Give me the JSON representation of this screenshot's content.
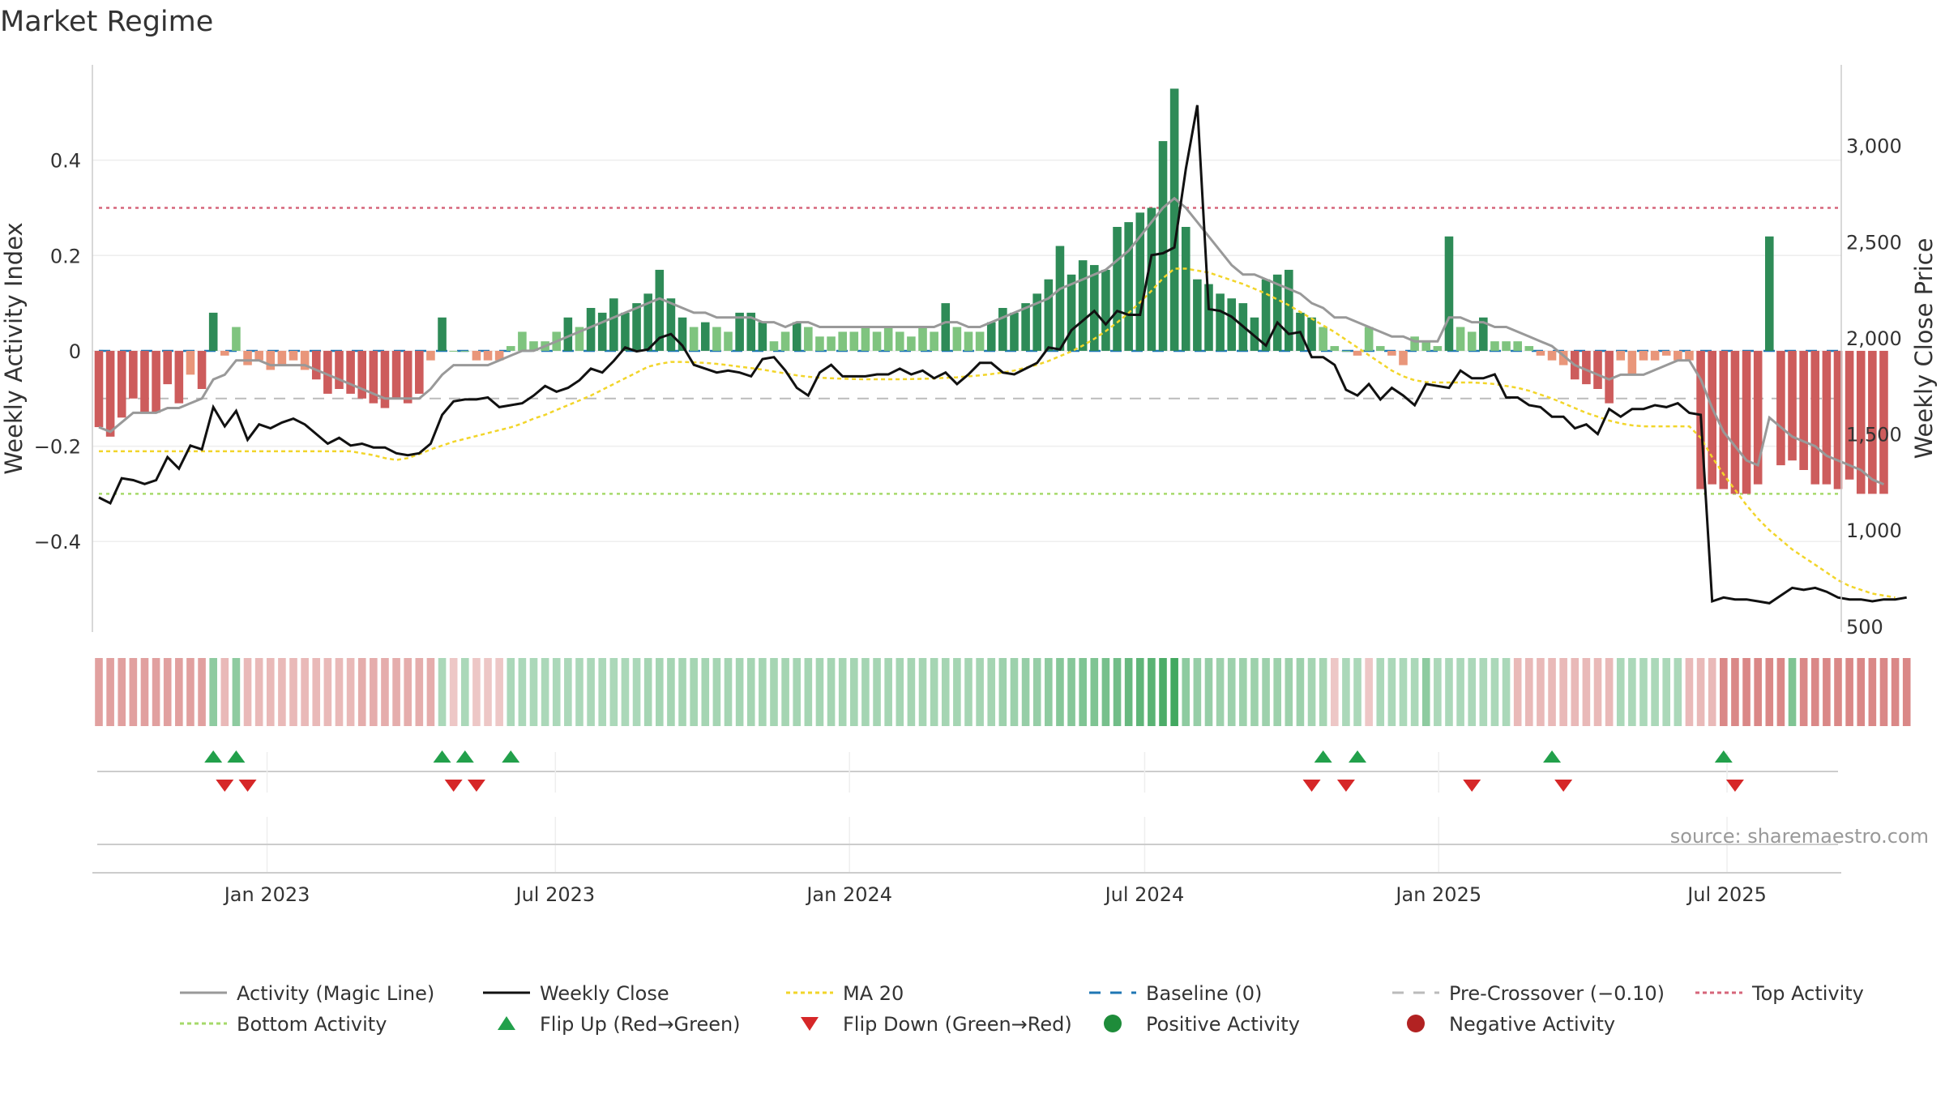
{
  "title": "Market Regime",
  "source_text": "source: sharemaestro.com",
  "colors": {
    "pos_dark": "#2e8b57",
    "pos_light": "#7fc47f",
    "neg_dark": "#cd5c5c",
    "neg_light": "#e9967a",
    "magic_line": "#999999",
    "close": "#111111",
    "ma20": "#f2d52a",
    "baseline": "#1f77b4",
    "pre_crossover": "#bbbbbb",
    "top": "#d6657a",
    "bottom": "#a6d96a",
    "flip_up": "#22a04b",
    "flip_down": "#d62728",
    "strip_pos": "#2e9e4f",
    "strip_neg": "#c8504e"
  },
  "legend": [
    {
      "label": "Activity (Magic Line)",
      "icon": "line-solid-gray"
    },
    {
      "label": "Weekly Close",
      "icon": "line-solid-black"
    },
    {
      "label": "MA 20",
      "icon": "line-dotted-yellow"
    },
    {
      "label": "Baseline (0)",
      "icon": "line-dashed-blue"
    },
    {
      "label": "Pre-Crossover (−0.10)",
      "icon": "line-dashed-gray"
    },
    {
      "label": "Top Activity",
      "icon": "line-dotted-pink"
    },
    {
      "label": "Bottom Activity",
      "icon": "line-dotted-green"
    },
    {
      "label": "Flip Up (Red→Green)",
      "icon": "triangle-up-green"
    },
    {
      "label": "Flip Down (Green→Red)",
      "icon": "triangle-down-red"
    },
    {
      "label": "Positive Activity",
      "icon": "dot-green"
    },
    {
      "label": "Negative Activity",
      "icon": "dot-red"
    }
  ],
  "chart_data": {
    "type": "bar",
    "xaxis": {
      "range_weeks": [
        0,
        152
      ],
      "ticks": [
        {
          "label": "Jan 2023",
          "week": 14.7
        },
        {
          "label": "Jul 2023",
          "week": 39.9
        },
        {
          "label": "Jan 2024",
          "week": 65.6
        },
        {
          "label": "Jul 2024",
          "week": 91.4
        },
        {
          "label": "Jan 2025",
          "week": 117.1
        },
        {
          "label": "Jul 2025",
          "week": 142.3
        }
      ]
    },
    "y_left": {
      "label": "Weekly Activity Index",
      "range": [
        -0.59,
        0.6
      ],
      "ticks": [
        {
          "v": 0.4,
          "label": "0.4"
        },
        {
          "v": 0.2,
          "label": "0.2"
        },
        {
          "v": 0,
          "label": "0"
        },
        {
          "v": -0.2,
          "label": "−0.2"
        },
        {
          "v": -0.4,
          "label": "−0.4"
        }
      ]
    },
    "y_right": {
      "label": "Weekly Close Price",
      "range": [
        470,
        3420
      ],
      "ticks": [
        {
          "v": 3000,
          "label": "3,000"
        },
        {
          "v": 2500,
          "label": "2,500"
        },
        {
          "v": 2000,
          "label": "2,000"
        },
        {
          "v": 1500,
          "label": "1,500"
        },
        {
          "v": 1000,
          "label": "1,000"
        },
        {
          "v": 500,
          "label": "500"
        }
      ]
    },
    "reference_lines": {
      "top": 0.3,
      "bottom": -0.3,
      "pre_crossover": -0.1,
      "baseline": 0
    },
    "activity": [
      -0.16,
      -0.18,
      -0.14,
      -0.1,
      -0.13,
      -0.13,
      -0.07,
      -0.11,
      -0.05,
      -0.08,
      0.08,
      -0.01,
      0.05,
      -0.03,
      -0.02,
      -0.04,
      -0.03,
      -0.02,
      -0.04,
      -0.06,
      -0.09,
      -0.08,
      -0.09,
      -0.1,
      -0.11,
      -0.12,
      -0.1,
      -0.11,
      -0.09,
      -0.02,
      0.07,
      0,
      0,
      -0.02,
      -0.02,
      -0.02,
      0.01,
      0.04,
      0.02,
      0.02,
      0.04,
      0.07,
      0.05,
      0.09,
      0.08,
      0.11,
      0.08,
      0.1,
      0.12,
      0.17,
      0.11,
      0.07,
      0.05,
      0.06,
      0.05,
      0.04,
      0.08,
      0.08,
      0.06,
      0.02,
      0.04,
      0.06,
      0.05,
      0.03,
      0.03,
      0.04,
      0.04,
      0.05,
      0.04,
      0.05,
      0.04,
      0.03,
      0.05,
      0.04,
      0.1,
      0.05,
      0.04,
      0.04,
      0.06,
      0.09,
      0.08,
      0.1,
      0.12,
      0.15,
      0.22,
      0.16,
      0.19,
      0.18,
      0.17,
      0.26,
      0.27,
      0.29,
      0.3,
      0.44,
      0.55,
      0.26,
      0.15,
      0.14,
      0.12,
      0.11,
      0.1,
      0.07,
      0.15,
      0.16,
      0.17,
      0.08,
      0.07,
      0.05,
      0.01,
      0,
      -0.01,
      0.05,
      0.01,
      -0.01,
      -0.03,
      0.03,
      0.02,
      0.01,
      0.24,
      0.05,
      0.04,
      0.07,
      0.02,
      0.02,
      0.02,
      0.01,
      -0.01,
      -0.02,
      -0.03,
      -0.06,
      -0.07,
      -0.08,
      -0.11,
      -0.02,
      -0.05,
      -0.02,
      -0.02,
      -0.01,
      -0.02,
      -0.02,
      -0.29,
      -0.28,
      -0.29,
      -0.3,
      -0.3,
      -0.28,
      0.24,
      -0.24,
      -0.23,
      -0.25,
      -0.28,
      -0.28,
      -0.29,
      -0.27,
      -0.3,
      -0.3,
      -0.3
    ],
    "magic_line": [
      -0.16,
      -0.17,
      -0.15,
      -0.13,
      -0.13,
      -0.13,
      -0.12,
      -0.12,
      -0.11,
      -0.1,
      -0.06,
      -0.05,
      -0.02,
      -0.02,
      -0.02,
      -0.03,
      -0.03,
      -0.03,
      -0.03,
      -0.04,
      -0.05,
      -0.06,
      -0.07,
      -0.08,
      -0.09,
      -0.1,
      -0.1,
      -0.1,
      -0.1,
      -0.08,
      -0.05,
      -0.03,
      -0.03,
      -0.03,
      -0.03,
      -0.02,
      -0.01,
      0,
      0,
      0.01,
      0.02,
      0.03,
      0.04,
      0.05,
      0.06,
      0.07,
      0.08,
      0.09,
      0.1,
      0.11,
      0.1,
      0.09,
      0.08,
      0.08,
      0.07,
      0.07,
      0.07,
      0.07,
      0.06,
      0.06,
      0.05,
      0.06,
      0.06,
      0.05,
      0.05,
      0.05,
      0.05,
      0.05,
      0.05,
      0.05,
      0.05,
      0.05,
      0.05,
      0.05,
      0.06,
      0.06,
      0.05,
      0.05,
      0.06,
      0.07,
      0.08,
      0.09,
      0.1,
      0.11,
      0.13,
      0.14,
      0.15,
      0.16,
      0.17,
      0.19,
      0.21,
      0.24,
      0.27,
      0.3,
      0.32,
      0.3,
      0.27,
      0.24,
      0.21,
      0.18,
      0.16,
      0.16,
      0.15,
      0.14,
      0.13,
      0.12,
      0.1,
      0.09,
      0.07,
      0.07,
      0.06,
      0.05,
      0.04,
      0.03,
      0.03,
      0.02,
      0.02,
      0.02,
      0.07,
      0.07,
      0.06,
      0.06,
      0.05,
      0.05,
      0.04,
      0.03,
      0.02,
      0.01,
      -0.01,
      -0.03,
      -0.04,
      -0.05,
      -0.06,
      -0.05,
      -0.05,
      -0.05,
      -0.04,
      -0.03,
      -0.02,
      -0.02,
      -0.06,
      -0.12,
      -0.17,
      -0.2,
      -0.23,
      -0.24,
      -0.14,
      -0.16,
      -0.18,
      -0.19,
      -0.2,
      -0.22,
      -0.23,
      -0.24,
      -0.25,
      -0.27,
      -0.28
    ],
    "weekly_close": [
      1170,
      1140,
      1270,
      1260,
      1240,
      1260,
      1380,
      1320,
      1440,
      1420,
      1640,
      1540,
      1620,
      1470,
      1550,
      1530,
      1560,
      1580,
      1550,
      1500,
      1450,
      1480,
      1440,
      1450,
      1430,
      1430,
      1400,
      1390,
      1400,
      1450,
      1600,
      1670,
      1680,
      1680,
      1690,
      1640,
      1650,
      1660,
      1700,
      1750,
      1720,
      1740,
      1780,
      1840,
      1820,
      1880,
      1950,
      1930,
      1940,
      2000,
      2020,
      1960,
      1860,
      1840,
      1820,
      1830,
      1820,
      1800,
      1890,
      1900,
      1830,
      1740,
      1700,
      1820,
      1860,
      1800,
      1800,
      1800,
      1810,
      1810,
      1840,
      1810,
      1830,
      1790,
      1820,
      1760,
      1810,
      1870,
      1870,
      1820,
      1810,
      1840,
      1870,
      1950,
      1940,
      2040,
      2090,
      2140,
      2070,
      2140,
      2120,
      2120,
      2430,
      2440,
      2470,
      2880,
      3210,
      2150,
      2140,
      2110,
      2060,
      2010,
      1960,
      2080,
      2020,
      2030,
      1900,
      1900,
      1860,
      1730,
      1700,
      1760,
      1680,
      1740,
      1700,
      1650,
      1760,
      1750,
      1740,
      1830,
      1790,
      1790,
      1810,
      1690,
      1690,
      1650,
      1640,
      1590,
      1590,
      1530,
      1550,
      1500,
      1630,
      1590,
      1630,
      1630,
      1650,
      1640,
      1660,
      1610,
      1600,
      630,
      650,
      640,
      640,
      630,
      620,
      660,
      700,
      690,
      700,
      680,
      650,
      640,
      640,
      630,
      640,
      640,
      650
    ],
    "ma20": [
      1410,
      1410,
      1410,
      1410,
      1410,
      1410,
      1410,
      1410,
      1410,
      1410,
      1410,
      1410,
      1410,
      1410,
      1410,
      1410,
      1410,
      1410,
      1410,
      1410,
      1410,
      1410,
      1410,
      1400,
      1390,
      1375,
      1365,
      1375,
      1395,
      1420,
      1440,
      1460,
      1475,
      1490,
      1505,
      1520,
      1535,
      1555,
      1580,
      1600,
      1625,
      1650,
      1675,
      1700,
      1730,
      1760,
      1790,
      1820,
      1850,
      1865,
      1875,
      1875,
      1873,
      1870,
      1865,
      1858,
      1850,
      1843,
      1835,
      1825,
      1815,
      1805,
      1798,
      1793,
      1790,
      1788,
      1786,
      1785,
      1785,
      1785,
      1785,
      1786,
      1787,
      1789,
      1792,
      1795,
      1800,
      1805,
      1812,
      1820,
      1830,
      1845,
      1860,
      1880,
      1905,
      1930,
      1960,
      1995,
      2035,
      2080,
      2130,
      2185,
      2245,
      2310,
      2360,
      2360,
      2350,
      2340,
      2320,
      2300,
      2280,
      2255,
      2230,
      2200,
      2170,
      2135,
      2100,
      2065,
      2030,
      1990,
      1950,
      1910,
      1870,
      1830,
      1800,
      1780,
      1770,
      1768,
      1768,
      1768,
      1768,
      1765,
      1760,
      1750,
      1740,
      1725,
      1705,
      1685,
      1660,
      1635,
      1610,
      1590,
      1570,
      1555,
      1545,
      1540,
      1540,
      1540,
      1540,
      1540,
      1480,
      1380,
      1290,
      1210,
      1130,
      1060,
      1000,
      950,
      900,
      860,
      820,
      780,
      740,
      710,
      690,
      670,
      660,
      650
    ],
    "flip_up_weeks": [
      10,
      12,
      30,
      32,
      36,
      107,
      110,
      127,
      142
    ],
    "flip_down_weeks": [
      11,
      13,
      31,
      33,
      106,
      109,
      120,
      128,
      143
    ],
    "regime_strip": [
      -0.5,
      -0.5,
      -0.5,
      -0.5,
      -0.5,
      -0.5,
      -0.5,
      -0.5,
      -0.5,
      -0.5,
      0.5,
      -0.3,
      0.5,
      -0.3,
      -0.3,
      -0.3,
      -0.3,
      -0.3,
      -0.3,
      -0.3,
      -0.3,
      -0.3,
      -0.3,
      -0.4,
      -0.4,
      -0.4,
      -0.4,
      -0.4,
      -0.4,
      -0.4,
      0.3,
      -0.2,
      0.3,
      -0.2,
      -0.2,
      -0.2,
      0.3,
      0.3,
      0.3,
      0.3,
      0.3,
      0.3,
      0.3,
      0.3,
      0.3,
      0.3,
      0.3,
      0.3,
      0.35,
      0.35,
      0.35,
      0.35,
      0.35,
      0.35,
      0.35,
      0.35,
      0.35,
      0.35,
      0.35,
      0.35,
      0.35,
      0.35,
      0.35,
      0.35,
      0.35,
      0.35,
      0.35,
      0.35,
      0.35,
      0.35,
      0.35,
      0.35,
      0.35,
      0.35,
      0.35,
      0.35,
      0.35,
      0.35,
      0.35,
      0.4,
      0.4,
      0.45,
      0.45,
      0.5,
      0.55,
      0.55,
      0.6,
      0.6,
      0.65,
      0.7,
      0.75,
      0.8,
      0.85,
      0.95,
      1,
      0.5,
      0.45,
      0.45,
      0.4,
      0.4,
      0.4,
      0.4,
      0.4,
      0.4,
      0.4,
      0.4,
      0.35,
      0.35,
      -0.2,
      0.3,
      0.3,
      -0.2,
      0.3,
      0.3,
      0.3,
      0.3,
      0.5,
      0.3,
      0.3,
      0.3,
      0.3,
      0.3,
      0.3,
      0.3,
      -0.3,
      -0.3,
      -0.3,
      -0.3,
      -0.3,
      -0.3,
      -0.3,
      -0.3,
      -0.3,
      0.3,
      0.3,
      0.3,
      0.3,
      0.3,
      0.3,
      -0.3,
      -0.3,
      -0.3,
      -0.7,
      -0.7,
      -0.7,
      -0.7,
      -0.7,
      -0.7,
      0.6,
      -0.7,
      -0.7,
      -0.7,
      -0.7,
      -0.7,
      -0.7,
      -0.7,
      -0.7,
      -0.7,
      -0.7
    ]
  }
}
